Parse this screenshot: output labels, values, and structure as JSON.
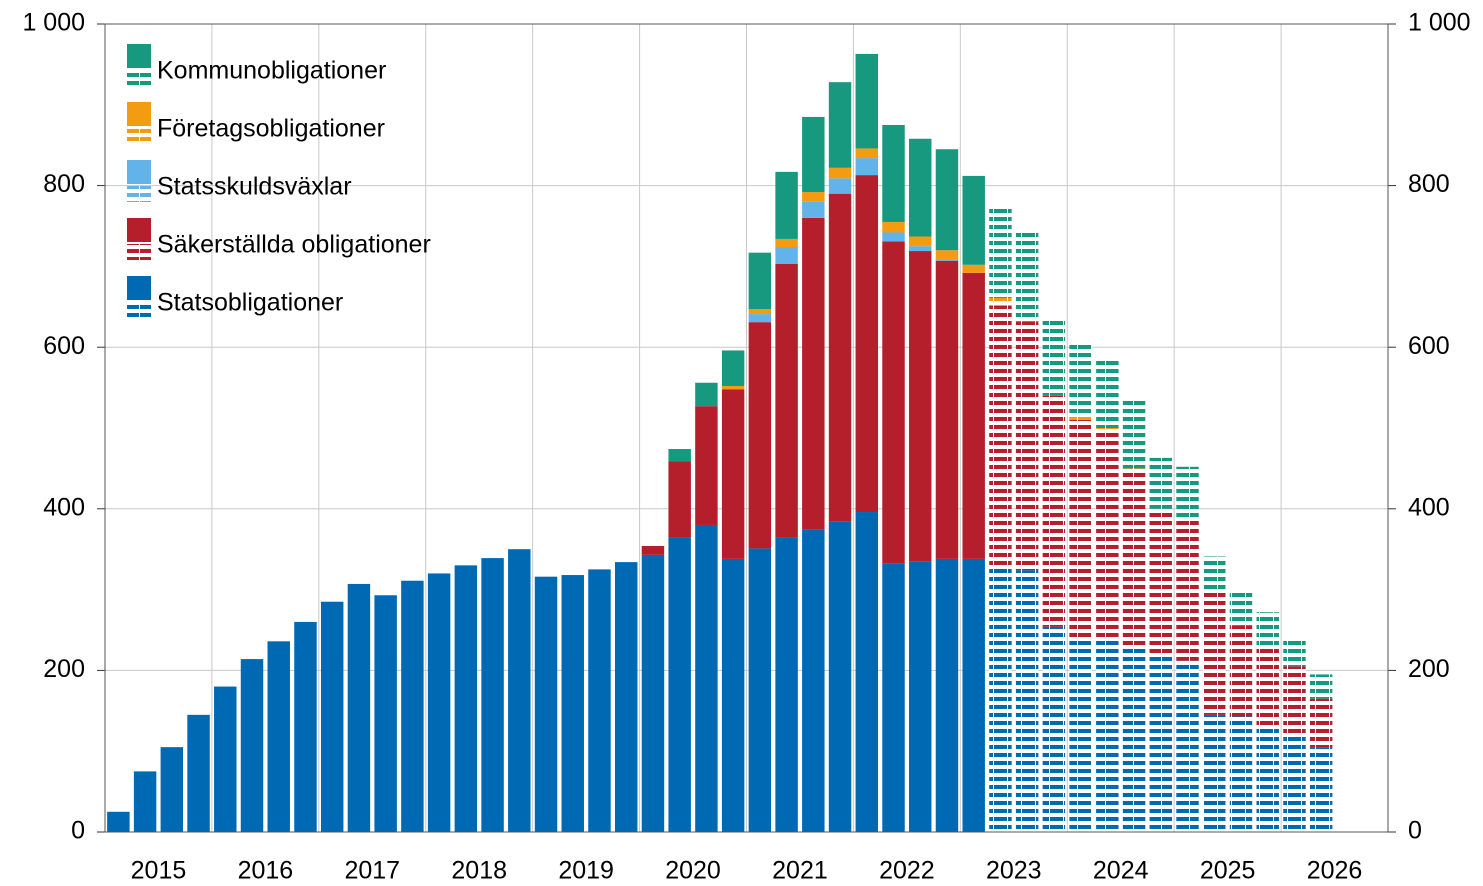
{
  "chart_data": {
    "type": "stacked_bar",
    "categories": [
      null,
      null,
      null,
      null,
      null,
      null,
      null,
      null,
      null,
      null,
      null,
      null,
      null,
      null,
      null,
      null,
      null,
      null,
      null,
      null,
      null,
      null,
      null,
      null,
      null,
      null,
      null,
      null,
      null,
      null,
      null,
      null,
      null,
      null,
      null,
      null,
      null,
      null,
      null,
      null,
      null,
      null,
      null,
      null,
      null,
      null,
      null,
      null
    ],
    "year_labels": [
      "2015",
      "2016",
      "2017",
      "2018",
      "2019",
      "2020",
      "2021",
      "2022",
      "2023",
      "2024",
      "2025",
      "2026"
    ],
    "series": [
      {
        "name": "Statsobligationer",
        "color": "#0069b4",
        "values": [
          25,
          75,
          105,
          145,
          180,
          214,
          236,
          260,
          285,
          307,
          293,
          311,
          320,
          330,
          339,
          350,
          316,
          318,
          325,
          334,
          343,
          364,
          380,
          338,
          351,
          364,
          374,
          384,
          396,
          332,
          335,
          338,
          338,
          null,
          null,
          null,
          null,
          null,
          null,
          null,
          null,
          null,
          null,
          null,
          null,
          null,
          null,
          null
        ],
        "projected_values": [
          null,
          null,
          null,
          null,
          null,
          null,
          null,
          null,
          null,
          null,
          null,
          null,
          null,
          null,
          null,
          null,
          null,
          null,
          null,
          null,
          null,
          null,
          null,
          null,
          null,
          null,
          null,
          null,
          null,
          null,
          null,
          null,
          null,
          327,
          324,
          254,
          240,
          238,
          230,
          220,
          212,
          145,
          143,
          130,
          122,
          105,
          null,
          null
        ]
      },
      {
        "name": "Säkerställda obligationer",
        "color": "#b41f2b",
        "values": [
          null,
          null,
          null,
          null,
          null,
          null,
          null,
          null,
          null,
          null,
          null,
          null,
          null,
          null,
          null,
          null,
          null,
          null,
          null,
          null,
          11,
          95,
          147,
          210,
          280,
          339,
          386,
          406,
          417,
          399,
          384,
          369,
          354,
          null,
          null,
          null,
          null,
          null,
          null,
          null,
          null,
          null,
          null,
          null,
          null,
          null,
          null,
          null
        ],
        "projected_values": [
          null,
          null,
          null,
          null,
          null,
          null,
          null,
          null,
          null,
          null,
          null,
          null,
          null,
          null,
          null,
          null,
          null,
          null,
          null,
          null,
          null,
          null,
          null,
          null,
          null,
          null,
          null,
          null,
          null,
          null,
          null,
          null,
          null,
          324,
          308,
          286,
          270,
          259,
          218,
          178,
          173,
          153,
          112,
          98,
          83,
          60,
          null,
          null
        ]
      },
      {
        "name": "Statsskuldsväxlar",
        "color": "#61b3ea",
        "values": [
          null,
          null,
          null,
          null,
          null,
          null,
          null,
          null,
          null,
          null,
          null,
          null,
          null,
          null,
          null,
          null,
          null,
          null,
          null,
          null,
          null,
          null,
          null,
          null,
          10,
          21,
          20,
          19,
          21,
          11,
          6,
          2,
          null,
          null,
          null,
          null,
          null,
          null,
          null,
          null,
          null,
          null,
          null,
          null,
          null,
          null,
          null,
          null
        ]
      },
      {
        "name": "Företagsobligationer",
        "color": "#f39c12",
        "values": [
          null,
          null,
          null,
          null,
          null,
          null,
          null,
          null,
          null,
          null,
          null,
          null,
          null,
          null,
          null,
          null,
          null,
          null,
          null,
          null,
          null,
          null,
          null,
          4,
          6,
          10,
          12,
          13,
          12,
          13,
          12,
          11,
          10,
          null,
          null,
          null,
          null,
          null,
          null,
          null,
          null,
          null,
          null,
          null,
          null,
          null,
          null,
          null
        ],
        "projected_values": [
          null,
          null,
          null,
          null,
          null,
          null,
          null,
          null,
          null,
          null,
          null,
          null,
          null,
          null,
          null,
          null,
          null,
          null,
          null,
          null,
          null,
          null,
          null,
          null,
          null,
          null,
          null,
          null,
          null,
          null,
          null,
          null,
          null,
          10,
          5,
          null,
          5,
          3,
          2,
          2,
          3,
          null,
          null,
          null,
          null,
          null,
          null,
          null
        ]
      },
      {
        "name": "Kommunobligationer",
        "color": "#17997f",
        "values": [
          null,
          null,
          null,
          null,
          null,
          null,
          null,
          null,
          null,
          null,
          null,
          null,
          null,
          null,
          null,
          null,
          null,
          null,
          null,
          null,
          null,
          15,
          29,
          44,
          70,
          83,
          93,
          106,
          117,
          120,
          121,
          125,
          110,
          null,
          null,
          null,
          null,
          null,
          null,
          null,
          null,
          null,
          null,
          null,
          null,
          null,
          null,
          null
        ],
        "projected_values": [
          null,
          null,
          null,
          null,
          null,
          null,
          null,
          null,
          null,
          null,
          null,
          null,
          null,
          null,
          null,
          null,
          null,
          null,
          null,
          null,
          null,
          null,
          null,
          null,
          null,
          null,
          null,
          null,
          null,
          null,
          null,
          null,
          null,
          113,
          108,
          97,
          88,
          87,
          87,
          63,
          64,
          43,
          45,
          44,
          35,
          30,
          null,
          null
        ]
      }
    ],
    "ylim": [
      0,
      1000
    ],
    "yticks": [
      0,
      200,
      400,
      600,
      800,
      {
        "value": 1000,
        "label": "1 000"
      }
    ],
    "y2lim": [
      0,
      1000
    ],
    "y2ticks": [
      0,
      200,
      400,
      600,
      800,
      {
        "value": 1000,
        "label": "1 000"
      }
    ],
    "grid": true,
    "legend": "top-left"
  }
}
